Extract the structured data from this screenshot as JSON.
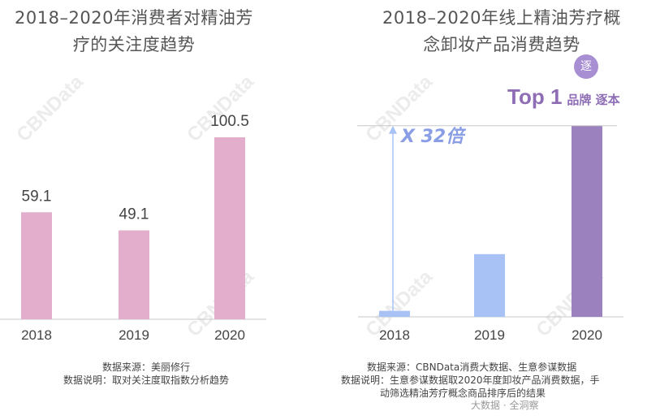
{
  "chart_data": [
    {
      "type": "bar",
      "title": "2018–2020年消费者对精油芳疗的关注度趋势",
      "title_lines": [
        "2018–2020年消费者对精油芳",
        "疗的关注度趋势"
      ],
      "categories": [
        "2018",
        "2019",
        "2020"
      ],
      "values": [
        59.1,
        49.1,
        100.5
      ],
      "value_labels": [
        "59.1",
        "49.1",
        "100.5"
      ],
      "ylim": [
        0,
        118
      ],
      "color": "#e2aecb",
      "grid": false,
      "notes": [
        "数据来源：美丽修行",
        "数据说明：取对关注度取指数分析趋势"
      ]
    },
    {
      "type": "bar",
      "title": "2018–2020年线上精油芳疗概念卸妆产品消费趋势",
      "title_lines": [
        "2018–2020年线上精油芳疗概",
        "念卸妆产品消费趋势"
      ],
      "categories": [
        "2018",
        "2019",
        "2020"
      ],
      "values": [
        1,
        10.5,
        32
      ],
      "colors": [
        "#a9c2f5",
        "#a9c2f5",
        "#9b82bf"
      ],
      "ylim": [
        0,
        34
      ],
      "grid": false,
      "annotations": {
        "multiplier": "X 32倍",
        "top_rank": "Top 1",
        "top_rank_suffix": "品牌 逐本",
        "badge_glyph": "逐"
      },
      "notes": [
        "数据来源：CBNData消费大数据、生意参谋数据",
        "数据说明：生意参谋数据取2020年度卸妆产品消费数据，手",
        "动筛选精油芳疗概念商品排序后的结果"
      ]
    }
  ],
  "footer": "大数据 · 全洞察",
  "watermark": "CBNData"
}
